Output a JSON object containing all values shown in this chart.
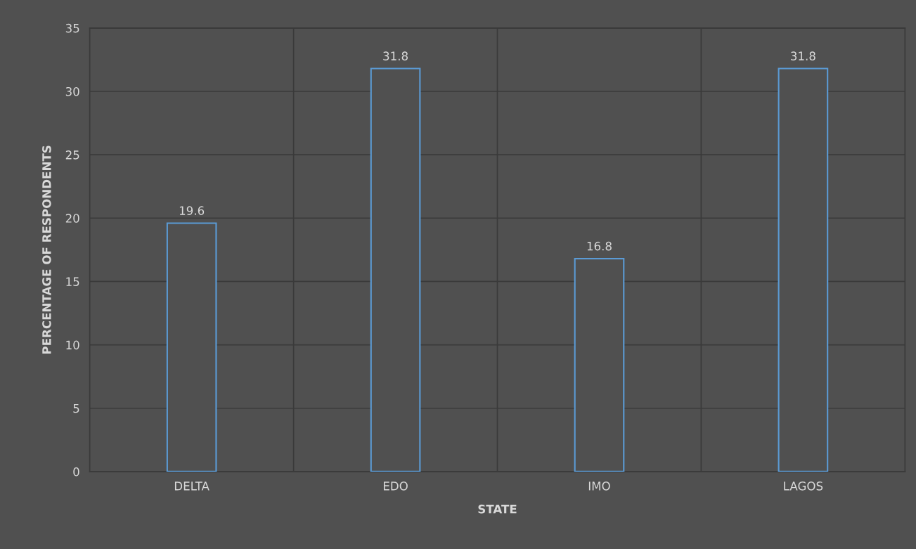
{
  "chart_data": {
    "type": "bar",
    "xlabel": "STATE",
    "ylabel": "PERCENTAGE OF RESPONDENTS",
    "categories": [
      "DELTA",
      "EDO",
      "IMO",
      "LAGOS"
    ],
    "values": [
      19.6,
      31.8,
      16.8,
      31.8
    ],
    "color": "#5b9bd5",
    "ylim": [
      0,
      35
    ],
    "yticks": [
      0,
      5,
      10,
      15,
      20,
      25,
      30,
      35
    ],
    "grid": true,
    "data_labels": true
  }
}
